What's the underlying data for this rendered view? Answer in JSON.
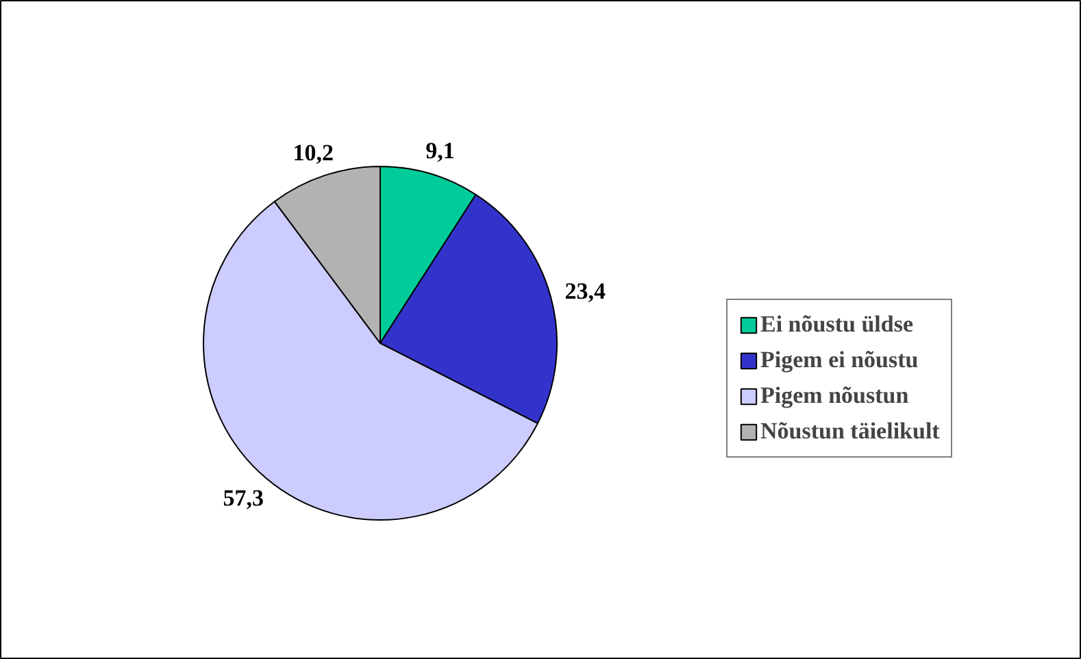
{
  "chart_data": {
    "type": "pie",
    "categories": [
      "Ei nõustu üldse",
      "Pigem ei nõustu",
      "Pigem nõustun",
      "Nõustun täielikult"
    ],
    "values": [
      9.1,
      23.4,
      57.3,
      10.2
    ],
    "colors": [
      "#00cc99",
      "#3333cc",
      "#ccccff",
      "#b2b2b2"
    ],
    "value_labels": [
      "9,1",
      "23,4",
      "57,3",
      "10,2"
    ],
    "legend": "right"
  }
}
